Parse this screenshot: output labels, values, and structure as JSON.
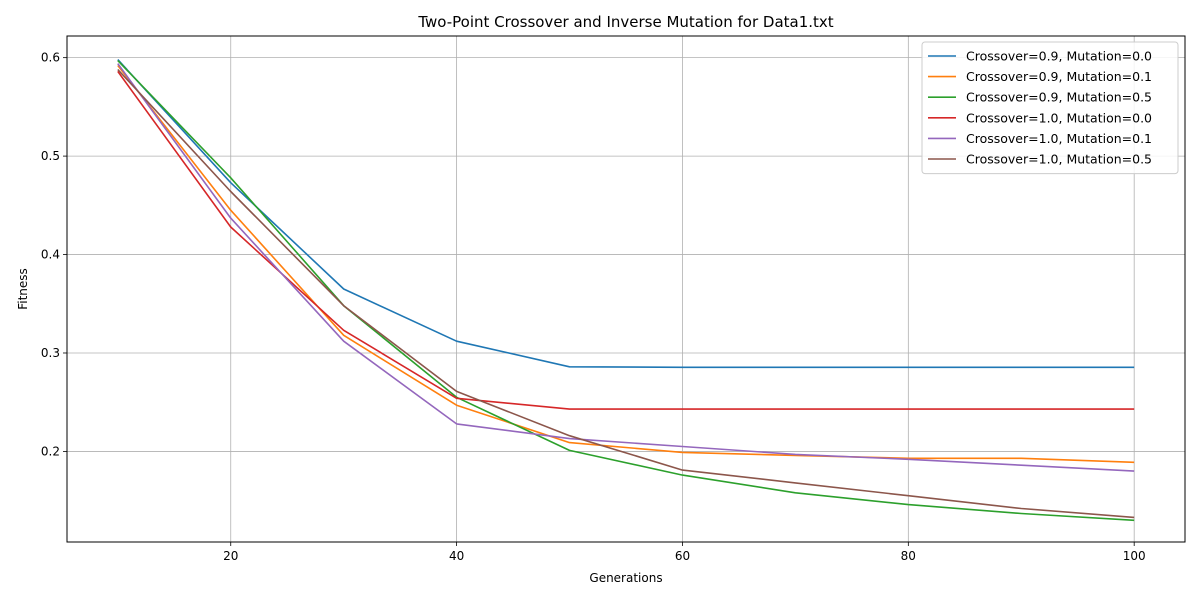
{
  "chart_data": {
    "type": "line",
    "title": "Two-Point Crossover and Inverse Mutation for Data1.txt",
    "xlabel": "Generations",
    "ylabel": "Fitness",
    "xlim": [
      5.5,
      104.5
    ],
    "ylim": [
      0.108,
      0.622
    ],
    "xticks": [
      20,
      40,
      60,
      80,
      100
    ],
    "yticks": [
      0.2,
      0.3,
      0.4,
      0.5,
      0.6
    ],
    "grid": true,
    "legend_position": "upper right",
    "x": [
      10,
      20,
      30,
      40,
      50,
      60,
      70,
      80,
      90,
      100
    ],
    "series": [
      {
        "name": "Crossover=0.9, Mutation=0.0",
        "color": "#1f77b4",
        "values": [
          0.598,
          0.473,
          0.365,
          0.312,
          0.286,
          0.2855,
          0.2855,
          0.2855,
          0.2855,
          0.2855
        ]
      },
      {
        "name": "Crossover=0.9, Mutation=0.1",
        "color": "#ff7f0e",
        "values": [
          0.592,
          0.445,
          0.318,
          0.247,
          0.209,
          0.199,
          0.196,
          0.193,
          0.193,
          0.189
        ]
      },
      {
        "name": "Crossover=0.9, Mutation=0.5",
        "color": "#2ca02c",
        "values": [
          0.597,
          0.478,
          0.348,
          0.255,
          0.201,
          0.176,
          0.158,
          0.146,
          0.137,
          0.13
        ]
      },
      {
        "name": "Crossover=1.0, Mutation=0.0",
        "color": "#d62728",
        "values": [
          0.586,
          0.428,
          0.323,
          0.254,
          0.243,
          0.243,
          0.243,
          0.243,
          0.243,
          0.243
        ]
      },
      {
        "name": "Crossover=1.0, Mutation=0.1",
        "color": "#9467bd",
        "values": [
          0.594,
          0.437,
          0.312,
          0.228,
          0.213,
          0.205,
          0.197,
          0.192,
          0.186,
          0.18
        ]
      },
      {
        "name": "Crossover=1.0, Mutation=0.5",
        "color": "#8c564b",
        "values": [
          0.588,
          0.464,
          0.348,
          0.261,
          0.216,
          0.181,
          0.168,
          0.155,
          0.142,
          0.133
        ]
      }
    ]
  }
}
